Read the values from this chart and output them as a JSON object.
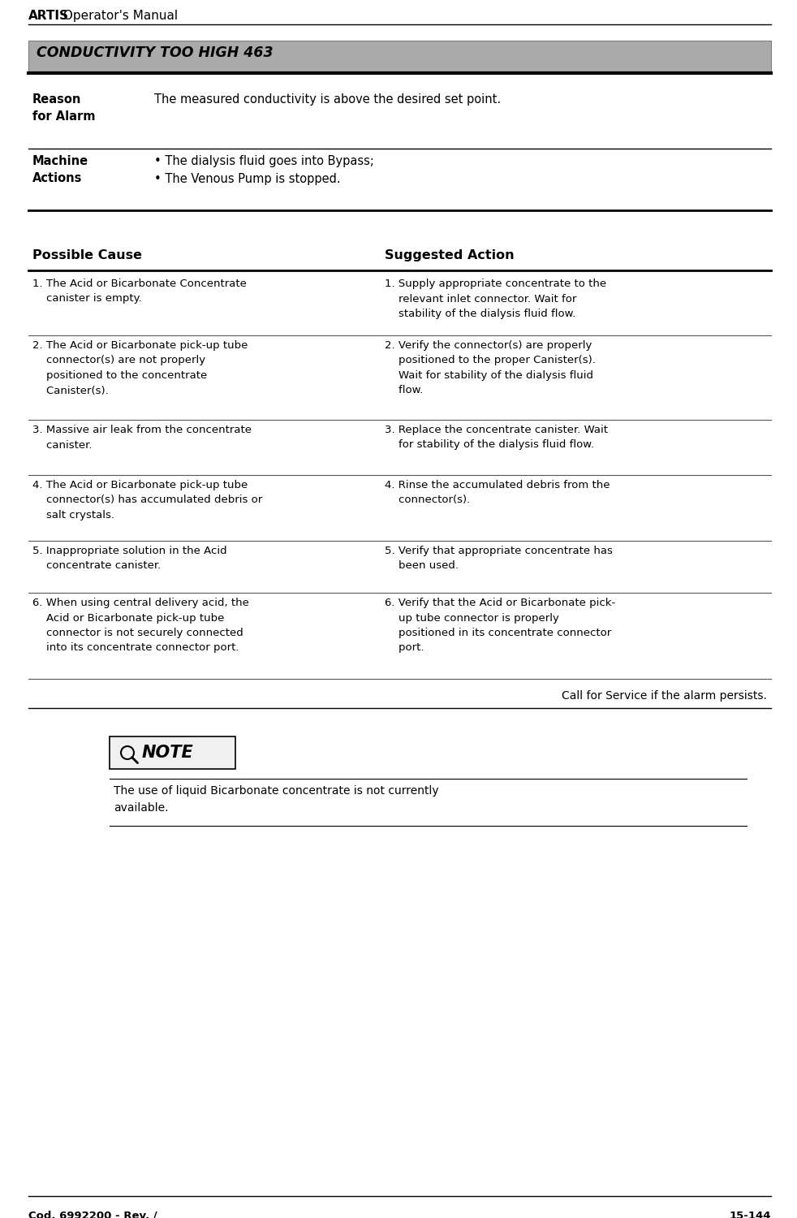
{
  "header_bold": "ARTIS",
  "header_normal": " Operator's Manual",
  "footer_left": "Cod. 6992200 - Rev. /",
  "footer_right": "15-144",
  "section_title": "CONDUCTIVITY TOO HIGH 463",
  "section_bg": "#aaaaaa",
  "reason_label": "Reason\nfor Alarm",
  "reason_text": "The measured conductivity is above the desired set point.",
  "machine_label": "Machine\nActions",
  "machine_text": "• The dialysis fluid goes into Bypass;\n• The Venous Pump is stopped.",
  "col1_header": "Possible Cause",
  "col2_header": "Suggested Action",
  "rows": [
    {
      "cause": "1. The Acid or Bicarbonate Concentrate\n    canister is empty.",
      "action": "1. Supply appropriate concentrate to the\n    relevant inlet connector. Wait for\n    stability of the dialysis fluid flow."
    },
    {
      "cause": "2. The Acid or Bicarbonate pick-up tube\n    connector(s) are not properly\n    positioned to the concentrate\n    Canister(s).",
      "action": "2. Verify the connector(s) are properly\n    positioned to the proper Canister(s).\n    Wait for stability of the dialysis fluid\n    flow."
    },
    {
      "cause": "3. Massive air leak from the concentrate\n    canister.",
      "action": "3. Replace the concentrate canister. Wait\n    for stability of the dialysis fluid flow."
    },
    {
      "cause": "4. The Acid or Bicarbonate pick-up tube\n    connector(s) has accumulated debris or\n    salt crystals.",
      "action": "4. Rinse the accumulated debris from the\n    connector(s)."
    },
    {
      "cause": "5. Inappropriate solution in the Acid\n    concentrate canister.",
      "action": "5. Verify that appropriate concentrate has\n    been used."
    },
    {
      "cause": "6. When using central delivery acid, the\n    Acid or Bicarbonate pick-up tube\n    connector is not securely connected\n    into its concentrate connector port.",
      "action": "6. Verify that the Acid or Bicarbonate pick-\n    up tube connector is properly\n    positioned in its concentrate connector\n    port."
    }
  ],
  "call_service": "Call for Service if the alarm persists.",
  "note_text": "The use of liquid Bicarbonate concentrate is not currently\navailable.",
  "bg_color": "#ffffff",
  "text_color": "#000000",
  "line_color": "#000000",
  "font_size": 9.5,
  "label_font_size": 10.5,
  "header_font_size": 11.5
}
